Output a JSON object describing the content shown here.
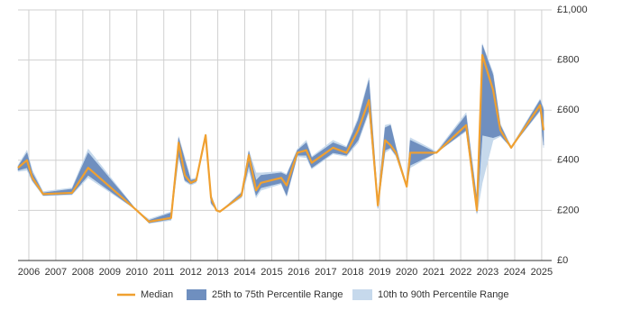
{
  "chart_data": {
    "type": "percentile-band-line",
    "x": [
      2005.6,
      2005.93,
      2006.13,
      2006.53,
      2007.6,
      2008.2,
      2010.0,
      2010.45,
      2011.27,
      2011.55,
      2011.78,
      2012.0,
      2012.2,
      2012.55,
      2012.75,
      2012.95,
      2013.08,
      2013.88,
      2014.15,
      2014.42,
      2014.6,
      2015.35,
      2015.55,
      2015.95,
      2016.28,
      2016.48,
      2017.27,
      2017.77,
      2018.2,
      2018.6,
      2018.93,
      2019.2,
      2019.4,
      2019.6,
      2020.0,
      2020.13,
      2021.1,
      2022.2,
      2022.6,
      2022.8,
      2023.2,
      2023.47,
      2023.87,
      2024.94,
      2025.07
    ],
    "bands": [
      {
        "name": "10th to 90th Percentile Range",
        "color": "#c6d9ec",
        "lower": [
          355,
          360,
          315,
          258,
          262,
          330,
          200,
          148,
          160,
          410,
          315,
          300,
          310,
          485,
          225,
          200,
          195,
          250,
          360,
          250,
          280,
          305,
          255,
          415,
          410,
          365,
          425,
          415,
          470,
          590,
          205,
          430,
          445,
          415,
          290,
          370,
          430,
          515,
          185,
          310,
          480,
          495,
          450,
          595,
          450
        ],
        "upper": [
          380,
          440,
          360,
          275,
          290,
          445,
          200,
          165,
          195,
          495,
          410,
          325,
          330,
          505,
          265,
          200,
          195,
          275,
          440,
          350,
          350,
          355,
          345,
          445,
          480,
          415,
          480,
          455,
          570,
          730,
          245,
          540,
          545,
          455,
          300,
          490,
          435,
          590,
          250,
          865,
          750,
          545,
          455,
          645,
          610
        ]
      },
      {
        "name": "25th to 75th Percentile Range",
        "color": "#6f8fbf",
        "lower": [
          360,
          370,
          320,
          260,
          265,
          340,
          200,
          150,
          165,
          420,
          320,
          305,
          315,
          490,
          230,
          200,
          195,
          255,
          380,
          260,
          290,
          310,
          260,
          420,
          420,
          370,
          430,
          420,
          480,
          600,
          210,
          440,
          450,
          420,
          295,
          380,
          430,
          520,
          190,
          500,
          490,
          500,
          450,
          600,
          460
        ],
        "upper": [
          375,
          430,
          350,
          270,
          285,
          430,
          200,
          160,
          190,
          490,
          400,
          320,
          325,
          500,
          260,
          200,
          195,
          270,
          435,
          320,
          340,
          350,
          340,
          440,
          470,
          410,
          470,
          450,
          560,
          720,
          240,
          530,
          540,
          450,
          295,
          480,
          430,
          580,
          240,
          860,
          740,
          540,
          450,
          640,
          600
        ]
      }
    ],
    "series": [
      {
        "name": "Median",
        "color": "#f0a030",
        "values": [
          370,
          400,
          330,
          265,
          270,
          370,
          200,
          155,
          170,
          470,
          340,
          310,
          320,
          500,
          250,
          200,
          195,
          260,
          420,
          280,
          310,
          330,
          300,
          430,
          440,
          390,
          450,
          430,
          520,
          640,
          220,
          480,
          460,
          430,
          295,
          430,
          430,
          540,
          200,
          820,
          680,
          520,
          450,
          620,
          520
        ]
      }
    ],
    "xlim": [
      2005.6,
      2025.37
    ],
    "xticks": [
      2006,
      2007,
      2008,
      2009,
      2010,
      2011,
      2012,
      2013,
      2014,
      2015,
      2016,
      2017,
      2018,
      2019,
      2020,
      2021,
      2022,
      2023,
      2024,
      2025
    ],
    "ylim": [
      0,
      1000
    ],
    "yticks": [
      {
        "value": 0,
        "label": "£0"
      },
      {
        "value": 200,
        "label": "£200"
      },
      {
        "value": 400,
        "label": "£400"
      },
      {
        "value": 600,
        "label": "£600"
      },
      {
        "value": 800,
        "label": "£800"
      },
      {
        "value": 1000,
        "label": "£1,000"
      }
    ],
    "grid": true
  }
}
